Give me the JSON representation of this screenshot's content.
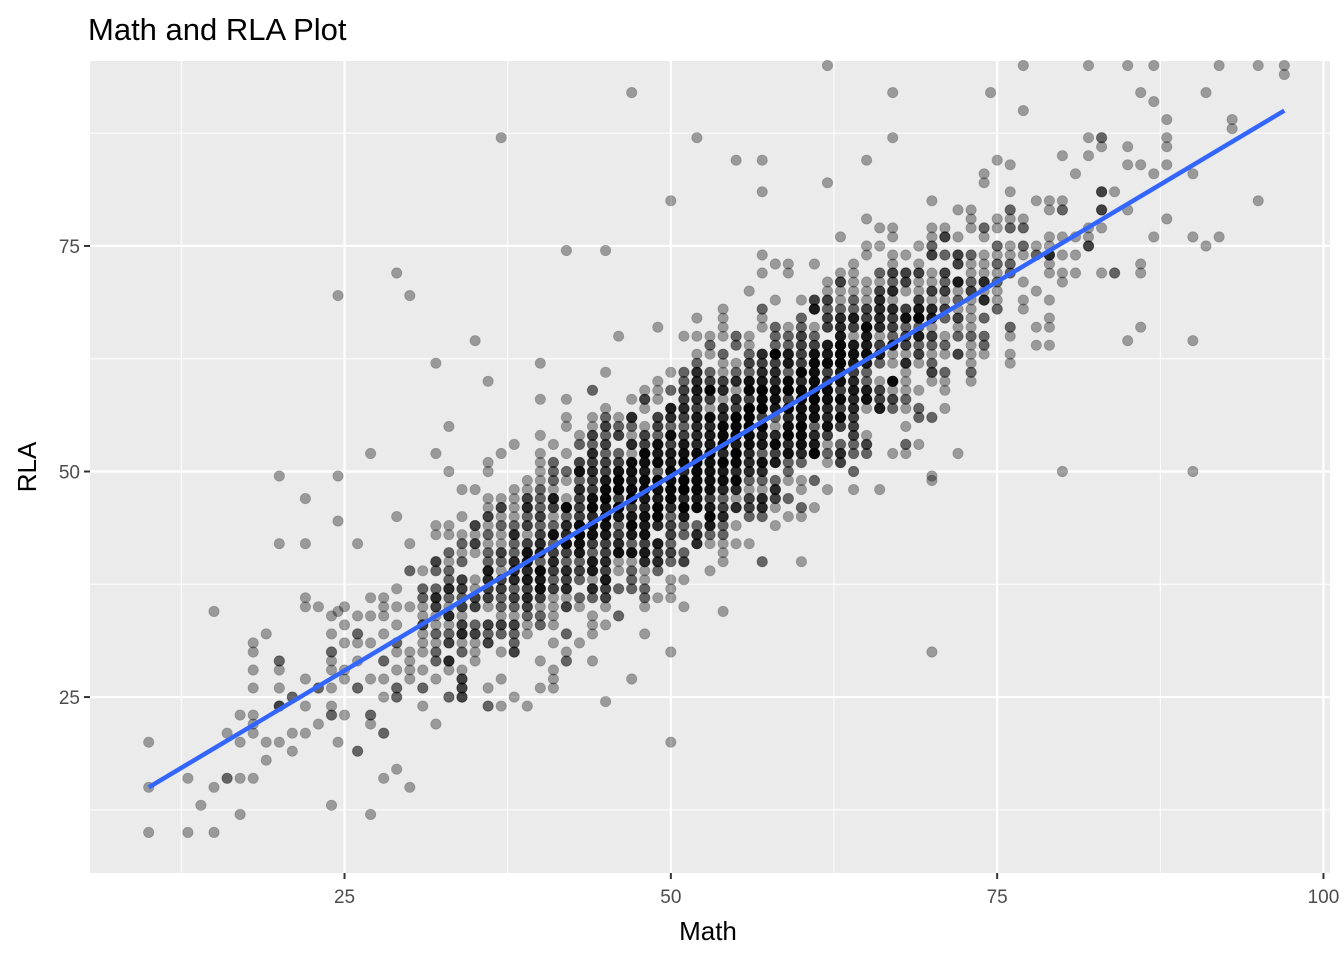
{
  "chart_data": {
    "type": "scatter",
    "title": "Math and RLA Plot",
    "xlabel": "Math",
    "ylabel": "RLA",
    "xlim": [
      5.5,
      100.5
    ],
    "ylim": [
      5.5,
      95.5
    ],
    "x_ticks": [
      25,
      50,
      75,
      100
    ],
    "x_minor_ticks": [
      12.5,
      37.5,
      62.5,
      87.5
    ],
    "y_ticks": [
      25,
      50,
      75
    ],
    "y_minor_ticks": [
      12.5,
      37.5,
      62.5,
      87.5
    ],
    "grid": true,
    "point_alpha": 0.35,
    "trend_line": {
      "method": "lm",
      "x": [
        10,
        97
      ],
      "y": [
        15,
        90
      ]
    },
    "n_points": 3000,
    "sample_points": [
      [
        10,
        10
      ],
      [
        10,
        15
      ],
      [
        10,
        20
      ],
      [
        15,
        10
      ],
      [
        15,
        15
      ],
      [
        15,
        34.5
      ],
      [
        18,
        16
      ],
      [
        18,
        26
      ],
      [
        18,
        30
      ],
      [
        19,
        18
      ],
      [
        19,
        20
      ],
      [
        20,
        20
      ],
      [
        20,
        42
      ],
      [
        20,
        49.5
      ],
      [
        22,
        42
      ],
      [
        22,
        47
      ],
      [
        22,
        27
      ],
      [
        23,
        35
      ],
      [
        24,
        30
      ],
      [
        24.5,
        20
      ],
      [
        24.5,
        34.5
      ],
      [
        24.5,
        44.5
      ],
      [
        24.5,
        49.5
      ],
      [
        24.5,
        69.5
      ],
      [
        27,
        12
      ],
      [
        27,
        22
      ],
      [
        27,
        27
      ],
      [
        27,
        52
      ],
      [
        29,
        72
      ],
      [
        30,
        15
      ],
      [
        30,
        69.5
      ],
      [
        32,
        22
      ],
      [
        32,
        52
      ],
      [
        32,
        62
      ],
      [
        33,
        55
      ],
      [
        35,
        64.5
      ],
      [
        36,
        60
      ],
      [
        37,
        27
      ],
      [
        37,
        87
      ],
      [
        37,
        52
      ],
      [
        40,
        62
      ],
      [
        42,
        74.5
      ],
      [
        45,
        24.5
      ],
      [
        45,
        74.5
      ],
      [
        46,
        65
      ],
      [
        47,
        27
      ],
      [
        47,
        92
      ],
      [
        50,
        30
      ],
      [
        50,
        20
      ],
      [
        50,
        80
      ],
      [
        52,
        87
      ],
      [
        54,
        34.5
      ],
      [
        55,
        84.5
      ],
      [
        57,
        84.5
      ],
      [
        57,
        81
      ],
      [
        60,
        40
      ],
      [
        62,
        95
      ],
      [
        62,
        82
      ],
      [
        65,
        84.5
      ],
      [
        67,
        87
      ],
      [
        67,
        92
      ],
      [
        70,
        80
      ],
      [
        70,
        30
      ],
      [
        70,
        49.5
      ],
      [
        72,
        52
      ],
      [
        74.5,
        92
      ],
      [
        75,
        84.5
      ],
      [
        77,
        90
      ],
      [
        77,
        95
      ],
      [
        80,
        50
      ],
      [
        82,
        95
      ],
      [
        85,
        64.5
      ],
      [
        87,
        95
      ],
      [
        90,
        50
      ],
      [
        90,
        64.5
      ],
      [
        92,
        95
      ],
      [
        95,
        95
      ],
      [
        95,
        80
      ],
      [
        97,
        95
      ]
    ]
  }
}
